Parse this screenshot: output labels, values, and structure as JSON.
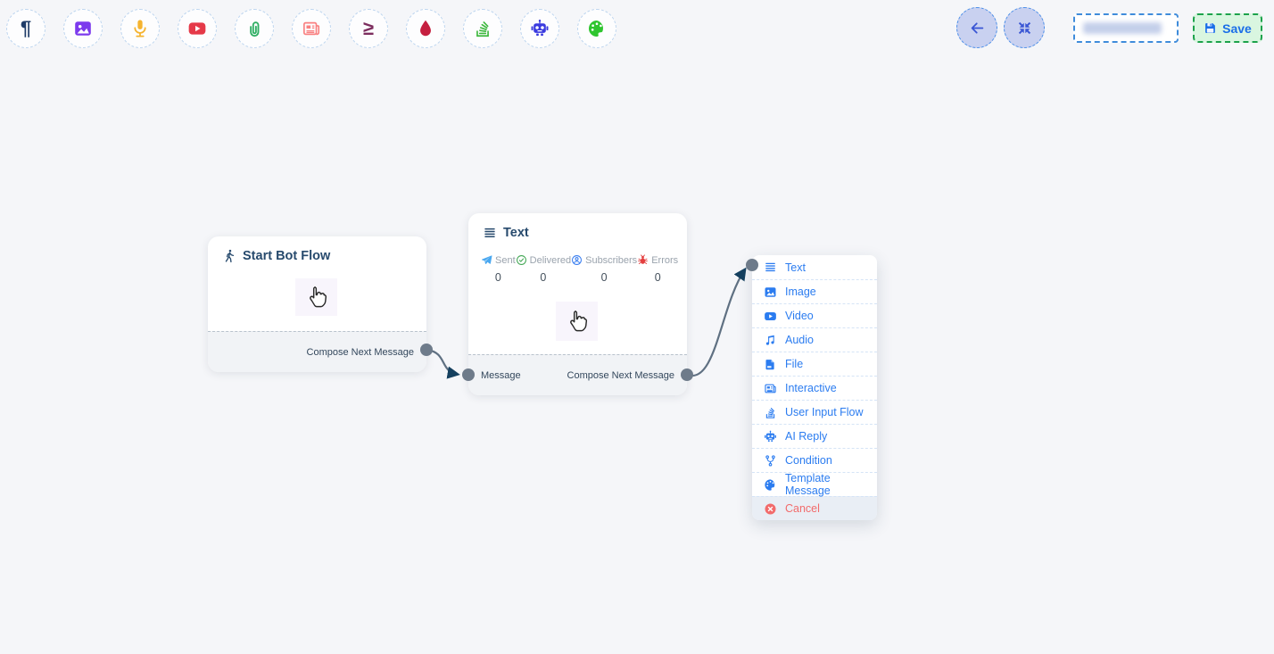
{
  "colors": {
    "page_bg": "#f5f6f9",
    "menu_blue": "#2b7cf0",
    "cancel_red": "#f26b6b",
    "node_title": "#274a6d",
    "edge_gray": "#5f7082",
    "arrow_navy": "#15405f",
    "port_dot_gray": "#6e7b8a",
    "save_text_blue": "#1a6fe8",
    "save_bg_green": "#d9f6e0",
    "save_border_green": "#1ca24b"
  },
  "toolbar": {
    "items": [
      {
        "name": "text",
        "icon": "pilcrow-icon",
        "color": "#1f3c68"
      },
      {
        "name": "image",
        "icon": "image-icon",
        "color": "#7c3aed"
      },
      {
        "name": "audio",
        "icon": "microphone-icon",
        "color": "#f5b32f"
      },
      {
        "name": "video",
        "icon": "video-icon",
        "color": "#e53948"
      },
      {
        "name": "file",
        "icon": "paperclip-icon",
        "color": "#2fae63"
      },
      {
        "name": "interactive",
        "icon": "newspaper-icon",
        "color": "#f98080"
      },
      {
        "name": "condition",
        "icon": "gte-icon",
        "color": "#7c2d5e"
      },
      {
        "name": "drip",
        "icon": "droplet-icon",
        "color": "#c51f3f"
      },
      {
        "name": "user-input-flow",
        "icon": "stack-icon",
        "color": "#3db83d"
      },
      {
        "name": "ai-reply",
        "icon": "robot-icon",
        "color": "#3a3adf"
      },
      {
        "name": "template-message",
        "icon": "palette-icon",
        "color": "#2fc52f"
      }
    ]
  },
  "header_actions": {
    "back_icon": "back-arrow-icon",
    "compress_icon": "compress-icon",
    "flow_name_input": {
      "value": ""
    },
    "save": {
      "label": "Save",
      "icon": "floppy-icon"
    }
  },
  "canvas": {
    "nodes": [
      {
        "title": "Start Bot Flow",
        "icon": "walking-person-icon",
        "outputs": [
          {
            "label": "Compose Next Message"
          }
        ]
      },
      {
        "title": "Text",
        "icon": "text-lines-icon",
        "stats": [
          {
            "label": "Sent",
            "value": "0",
            "icon": "paper-plane-icon",
            "color": "#4aa8f0"
          },
          {
            "label": "Delivered",
            "value": "0",
            "icon": "check-circle-icon",
            "color": "#43a755"
          },
          {
            "label": "Subscribers",
            "value": "0",
            "icon": "user-circle-icon",
            "color": "#3b7ff0"
          },
          {
            "label": "Errors",
            "value": "0",
            "icon": "bug-icon",
            "color": "#e43f3f"
          }
        ],
        "inputs": [
          {
            "label": "Message"
          }
        ],
        "outputs": [
          {
            "label": "Compose Next Message"
          }
        ]
      }
    ],
    "edges": [
      {
        "from": "Start Bot Flow / Compose Next Message",
        "to": "Text / Message"
      },
      {
        "from": "Text / Compose Next Message",
        "to": "add-node-menu"
      }
    ],
    "context_menu": {
      "items": [
        {
          "label": "Text",
          "icon": "text-lines-icon"
        },
        {
          "label": "Image",
          "icon": "image-icon"
        },
        {
          "label": "Video",
          "icon": "video-icon"
        },
        {
          "label": "Audio",
          "icon": "music-note-icon"
        },
        {
          "label": "File",
          "icon": "file-icon"
        },
        {
          "label": "Interactive",
          "icon": "newspaper-icon"
        },
        {
          "label": "User Input Flow",
          "icon": "stack-icon"
        },
        {
          "label": "AI Reply",
          "icon": "robot-icon"
        },
        {
          "label": "Condition",
          "icon": "git-branch-icon"
        },
        {
          "label": "Template Message",
          "icon": "palette-icon"
        }
      ],
      "cancel": {
        "label": "Cancel",
        "icon": "cancel-icon"
      }
    }
  }
}
